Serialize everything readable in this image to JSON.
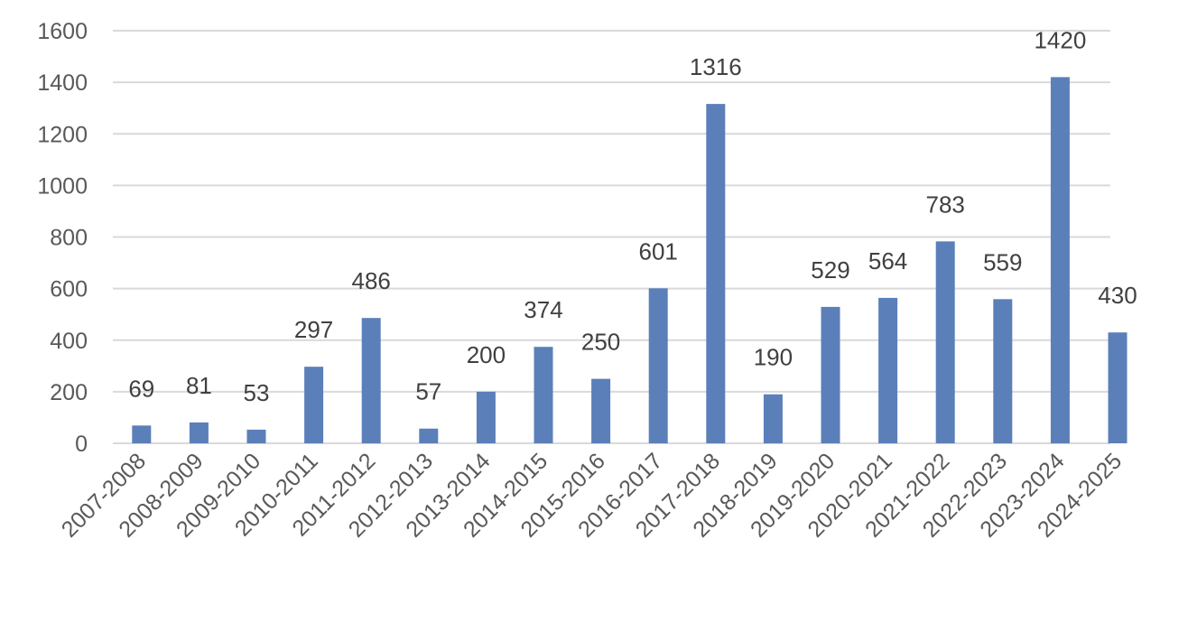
{
  "chart_data": {
    "type": "bar",
    "categories": [
      "2007-2008",
      "2008-2009",
      "2009-2010",
      "2010-2011",
      "2011-2012",
      "2012-2013",
      "2013-2014",
      "2014-2015",
      "2015-2016",
      "2016-2017",
      "2017-2018",
      "2018-2019",
      "2019-2020",
      "2020-2021",
      "2021-2022",
      "2022-2023",
      "2023-2024",
      "2024-2025"
    ],
    "values": [
      69,
      81,
      53,
      297,
      486,
      57,
      200,
      374,
      250,
      601,
      1316,
      190,
      529,
      564,
      783,
      559,
      1420,
      430
    ],
    "data_labels": [
      "69",
      "81",
      "53",
      "297",
      "486",
      "57",
      "200",
      "374",
      "250",
      "601",
      "1316",
      "190",
      "529",
      "564",
      "783",
      "559",
      "1420",
      "430"
    ],
    "title": "",
    "xlabel": "",
    "ylabel": "",
    "ylim": [
      0,
      1600
    ],
    "y_ticks": [
      "0",
      "200",
      "400",
      "600",
      "800",
      "1000",
      "1200",
      "1400",
      "1600"
    ],
    "grid": true,
    "legend": "none",
    "bar_color": "#5b7fb9",
    "grid_color": "#d9d9d9",
    "tick_color": "#595959",
    "label_color": "#404040"
  }
}
